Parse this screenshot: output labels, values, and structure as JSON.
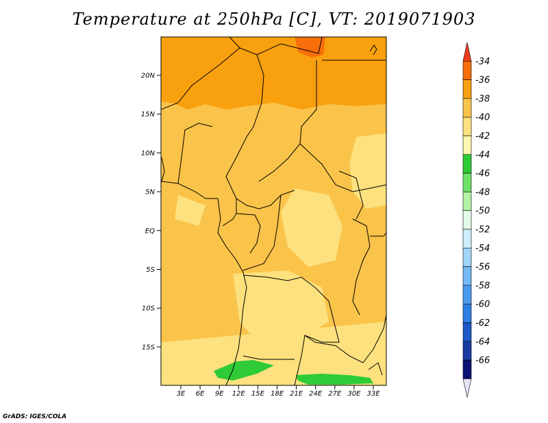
{
  "title": "Temperature at 250hPa [C], VT: 2019071903",
  "footer": "GrADS: IGES/COLA",
  "map": {
    "lat_ticks": [
      "20N",
      "15N",
      "10N",
      "5N",
      "EQ",
      "5S",
      "10S",
      "15S"
    ],
    "lon_ticks": [
      "3E",
      "6E",
      "9E",
      "12E",
      "15E",
      "18E",
      "21E",
      "24E",
      "27E",
      "30E",
      "33E"
    ]
  },
  "colorbar": {
    "levels": [
      "-34",
      "-36",
      "-38",
      "-40",
      "-42",
      "-44",
      "-46",
      "-48",
      "-50",
      "-52",
      "-54",
      "-56",
      "-58",
      "-60",
      "-62",
      "-64",
      "-66"
    ],
    "colors": [
      "#f03c1e",
      "#f76e0a",
      "#f9a00f",
      "#fac34a",
      "#fde17e",
      "#fff8b0",
      "#2ecb36",
      "#6fe26a",
      "#b2f2a4",
      "#e4fbe8",
      "#ceeefe",
      "#a1d6fb",
      "#73baf6",
      "#4b9cf0",
      "#2e7ee6",
      "#1e58c8",
      "#1a3ca2",
      "#0c1273",
      "#e7e4f8"
    ]
  }
}
